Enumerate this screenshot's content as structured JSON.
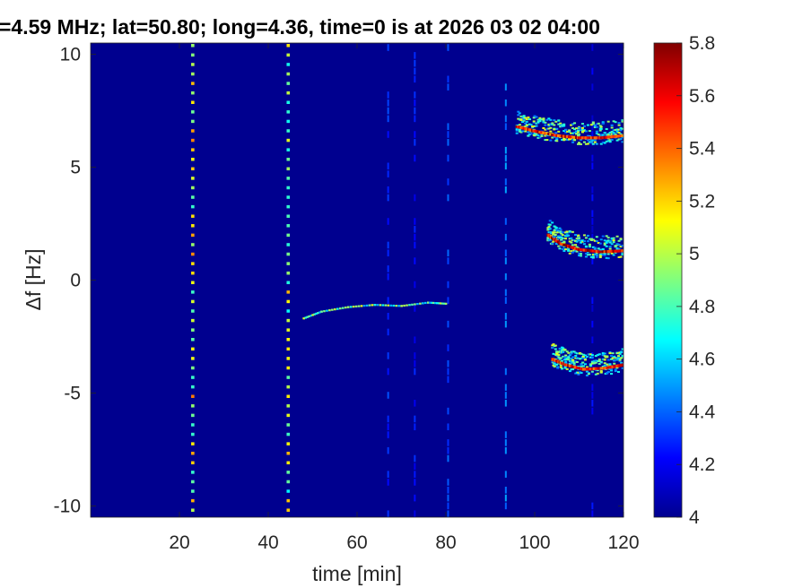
{
  "chart_data": {
    "type": "heatmap",
    "title": "=4.59 MHz;  lat=50.80; long=4.36, time=0 is at 2026 03 02 04:00",
    "xlabel": "time [min]",
    "ylabel": "Δf [Hz]",
    "xlim": [
      0,
      120
    ],
    "ylim": [
      -10.5,
      10.5
    ],
    "x_ticks": [
      20,
      40,
      60,
      80,
      100,
      120
    ],
    "y_ticks": [
      -10,
      -5,
      0,
      5,
      10
    ],
    "colorbar": {
      "range": [
        4,
        5.8
      ],
      "ticks": [
        "4",
        "4.2",
        "4.4",
        "4.6",
        "4.8",
        "5",
        "5.2",
        "5.4",
        "5.6",
        "5.8"
      ],
      "colormap": "jet"
    },
    "background_value": 4.0,
    "features": {
      "vertical_pulse_lines": [
        {
          "time": 23,
          "value": 5.0
        },
        {
          "time": 44.5,
          "value": 4.9
        }
      ],
      "faint_vertical_lines": [
        {
          "time": 67,
          "value": 4.3
        },
        {
          "time": 73,
          "value": 4.25
        },
        {
          "time": 80.5,
          "value": 4.35
        },
        {
          "time": 93.5,
          "value": 4.45
        },
        {
          "time": 113,
          "value": 4.2
        }
      ],
      "drift_trace": {
        "points": [
          [
            48,
            -1.7
          ],
          [
            52,
            -1.4
          ],
          [
            58,
            -1.2
          ],
          [
            64,
            -1.1
          ],
          [
            70,
            -1.15
          ],
          [
            76,
            -1.0
          ],
          [
            80,
            -1.05
          ]
        ],
        "value": 4.9
      },
      "doppler_arcs": [
        {
          "name": "upper",
          "points": [
            [
              96,
              6.8
            ],
            [
              100,
              6.6
            ],
            [
              105,
              6.4
            ],
            [
              110,
              6.3
            ],
            [
              115,
              6.3
            ],
            [
              120,
              6.4
            ]
          ],
          "value": 5.6
        },
        {
          "name": "middle",
          "points": [
            [
              103,
              2.0
            ],
            [
              106,
              1.6
            ],
            [
              110,
              1.35
            ],
            [
              115,
              1.25
            ],
            [
              120,
              1.3
            ]
          ],
          "value": 5.7
        },
        {
          "name": "lower",
          "points": [
            [
              104,
              -3.5
            ],
            [
              107,
              -3.75
            ],
            [
              111,
              -3.95
            ],
            [
              116,
              -3.9
            ],
            [
              120,
              -3.75
            ]
          ],
          "value": 5.6
        }
      ]
    }
  }
}
